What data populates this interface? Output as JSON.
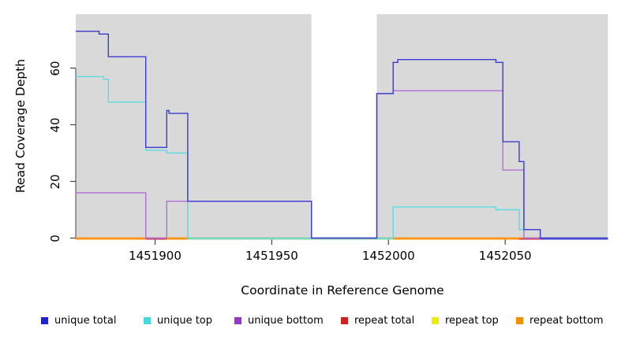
{
  "figure": {
    "x_axis": {
      "title": "Coordinate in Reference Genome",
      "ticks": [
        {
          "label": "1451900",
          "coord": 1451900
        },
        {
          "label": "1451950",
          "coord": 1451950
        },
        {
          "label": "1452000",
          "coord": 1452000
        },
        {
          "label": "1452050",
          "coord": 1452050
        }
      ]
    },
    "y_axis": {
      "title": "Read Coverage Depth",
      "ticks": [
        {
          "label": "0",
          "value": 0
        },
        {
          "label": "20",
          "value": 20
        },
        {
          "label": "40",
          "value": 40
        },
        {
          "label": "60",
          "value": 60
        }
      ]
    },
    "legend": [
      {
        "label": "unique total",
        "color": "#2222cc"
      },
      {
        "label": "unique top",
        "color": "#44d9dd"
      },
      {
        "label": "unique bottom",
        "color": "#9933cc"
      },
      {
        "label": "repeat total",
        "color": "#cc2222"
      },
      {
        "label": "repeat top",
        "color": "#eded00"
      },
      {
        "label": "repeat bottom",
        "color": "#f09000"
      }
    ]
  },
  "chart_data": {
    "type": "line",
    "subtype": "step-after read coverage plot",
    "xlabel": "Coordinate in Reference Genome",
    "ylabel": "Read Coverage Depth",
    "xlim": [
      1451866,
      1452094
    ],
    "ylim": [
      0,
      79
    ],
    "grid": false,
    "legend_position": "bottom",
    "background_blocks": [
      {
        "from": 1451866,
        "to": 1451967,
        "color": "#d9d9d9"
      },
      {
        "from": 1451995,
        "to": 1452094,
        "color": "#d9d9d9"
      }
    ],
    "coverage_gap": {
      "from": 1451967,
      "to": 1451995
    },
    "series": [
      {
        "name": "unique total",
        "color": "#3b3bd1",
        "points": [
          [
            1451866,
            73
          ],
          [
            1451876,
            72
          ],
          [
            1451880,
            64
          ],
          [
            1451896,
            32
          ],
          [
            1451905,
            45
          ],
          [
            1451906,
            44
          ],
          [
            1451914,
            13
          ],
          [
            1451967,
            0
          ],
          [
            1451995,
            51
          ],
          [
            1452002,
            62
          ],
          [
            1452004,
            63
          ],
          [
            1452046,
            62
          ],
          [
            1452049,
            34
          ],
          [
            1452056,
            27
          ],
          [
            1452058,
            3
          ],
          [
            1452065,
            0
          ],
          [
            1452094,
            0
          ]
        ]
      },
      {
        "name": "unique top",
        "color": "#5cdbe3",
        "points": [
          [
            1451866,
            57
          ],
          [
            1451878,
            56
          ],
          [
            1451880,
            48
          ],
          [
            1451896,
            31
          ],
          [
            1451905,
            30
          ],
          [
            1451914,
            0
          ],
          [
            1452002,
            11
          ],
          [
            1452046,
            10
          ],
          [
            1452056,
            3
          ],
          [
            1452065,
            0
          ],
          [
            1452094,
            0
          ]
        ]
      },
      {
        "name": "unique bottom",
        "color": "#b06fd8",
        "points": [
          [
            1451866,
            16
          ],
          [
            1451896,
            0
          ],
          [
            1451905,
            13
          ],
          [
            1451967,
            0
          ],
          [
            1451995,
            51
          ],
          [
            1452002,
            52
          ],
          [
            1452049,
            24
          ],
          [
            1452058,
            0
          ],
          [
            1452094,
            0
          ]
        ]
      },
      {
        "name": "repeat total",
        "color": "#d0344a",
        "points": [
          [
            1451866,
            0
          ],
          [
            1452094,
            0
          ]
        ]
      },
      {
        "name": "repeat top",
        "color": "#eded00",
        "points": [
          [
            1451866,
            0
          ],
          [
            1452094,
            0
          ]
        ]
      },
      {
        "name": "repeat bottom",
        "color": "#ff9414",
        "points": [
          [
            1451866,
            0
          ],
          [
            1452094,
            0
          ]
        ]
      }
    ],
    "zero_line_visible_segments": [
      {
        "color": "#ff9414",
        "from": 1451866,
        "to": 1451896
      },
      {
        "color": "#d0344a",
        "from": 1451896,
        "to": 1451905
      },
      {
        "color": "#ff9414",
        "from": 1451905,
        "to": 1451914
      },
      {
        "color": "#90d79a",
        "from": 1451914,
        "to": 1452002
      },
      {
        "color": "#ff9414",
        "from": 1452002,
        "to": 1452056
      },
      {
        "color": "#d0344a",
        "from": 1452056,
        "to": 1452065
      },
      {
        "color": "#3b3bd1",
        "from": 1452065,
        "to": 1452094
      }
    ]
  }
}
